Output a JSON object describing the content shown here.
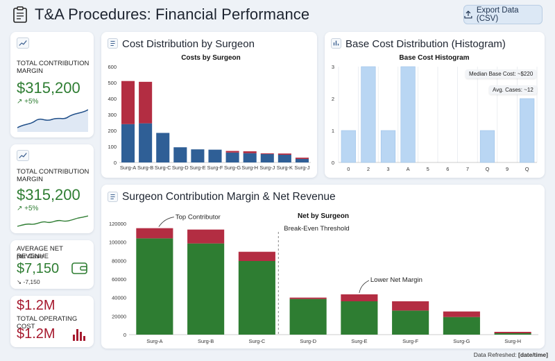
{
  "header": {
    "title": "T&A Procedures: Financial Performance",
    "export_label": "Export Data (CSV)"
  },
  "kpis": [
    {
      "label": "TOTAL CONTRIBUTION MARGIN",
      "value": "$315,200",
      "delta": "↗ +5%"
    },
    {
      "label": "TOTAL CONTRIBUTION MARGIN",
      "value": "$315,200",
      "delta": "↗ +5%"
    },
    {
      "label": "AVERAGE NET REVENUE",
      "sublabel": "per Case",
      "value": "$7,150",
      "delta": "↘ -7,150"
    },
    {
      "label": "TOTAL OPERATING COST",
      "value_top": "$1.2M",
      "value": "$1.2M"
    }
  ],
  "colors": {
    "blue": "#2f5f96",
    "red": "#b32d42",
    "green": "#2e7d32",
    "hist": "#b9d6f3",
    "cost_red": "#a6192e"
  },
  "panels": {
    "cost_title": "Cost Distribution by Surgeon",
    "hist_title": "Base Cost Distribution (Histogram)",
    "net_title": "Surgeon Contribution Margin & Net Revenue"
  },
  "chart_data": [
    {
      "type": "bar",
      "title": "Costs by Surgeon",
      "categories": [
        "Surg-A",
        "Surg-B",
        "Surg-C",
        "Surg-D",
        "Surg-E",
        "Surg-F",
        "Surg-G",
        "Surg-H",
        "Surg-J",
        "Surg-K",
        "Surg-J"
      ],
      "series": [
        {
          "values": [
            240,
            245,
            185,
            95,
            82,
            80,
            62,
            58,
            52,
            48,
            22
          ]
        },
        {
          "values": [
            270,
            260,
            0,
            0,
            0,
            0,
            10,
            12,
            5,
            8,
            8
          ]
        }
      ],
      "ylim": [
        0,
        600
      ],
      "yticks": [
        0,
        100,
        200,
        300,
        400,
        500,
        600
      ]
    },
    {
      "type": "bar",
      "title": "Base Cost Histogram",
      "categories": [
        "0",
        "2",
        "3",
        "A",
        "5",
        "6",
        "7",
        "Q",
        "9",
        "Q"
      ],
      "values": [
        1,
        3,
        1,
        3,
        0,
        0,
        0,
        1,
        0,
        2
      ],
      "ylim": [
        0,
        3
      ],
      "yticks": [
        0,
        1,
        2,
        3
      ],
      "annotations": [
        "Median Base Cost: ~$220",
        "Avg. Cases: ~12"
      ]
    },
    {
      "type": "bar",
      "title": "Net by Surgeon",
      "categories": [
        "Surg-A",
        "Surg-B",
        "Surg-C",
        "Surg-D",
        "Surg-E",
        "Surg-F",
        "Surg-G",
        "Surg-H"
      ],
      "series": [
        {
          "values": [
            104000,
            98500,
            79500,
            38500,
            36000,
            26000,
            19000,
            1500
          ]
        },
        {
          "values": [
            11000,
            15000,
            10000,
            1500,
            7500,
            10000,
            6000,
            1500
          ]
        }
      ],
      "ylim": [
        0,
        120000
      ],
      "yticks": [
        0,
        20000,
        40000,
        60000,
        80000,
        100000,
        120000
      ],
      "annotations": [
        "Top Contributor",
        "Break-Even Threshold",
        "Lower Net Margin"
      ]
    }
  ],
  "footer": {
    "label": "Data Refreshed:",
    "value": "[date/time]"
  }
}
